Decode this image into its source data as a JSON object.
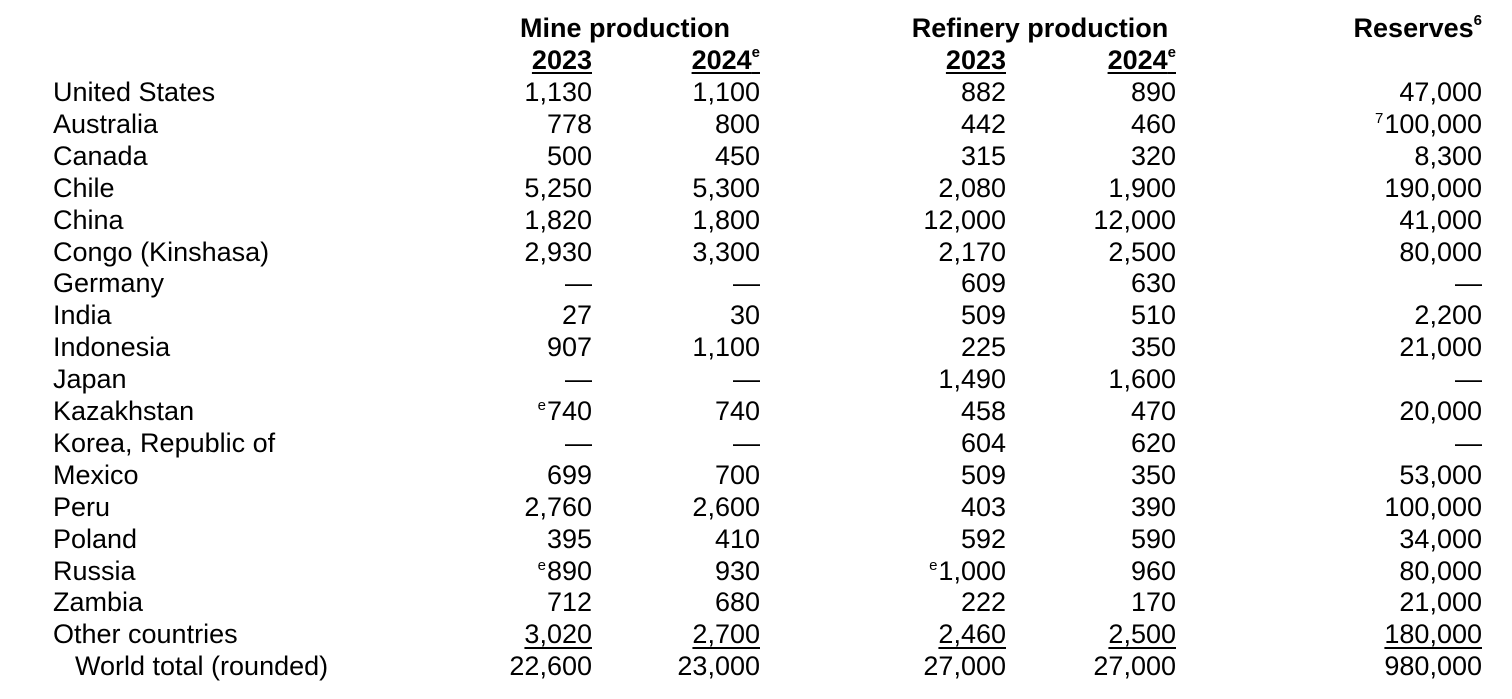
{
  "headers": {
    "mine_production": "Mine production",
    "refinery_production": "Refinery production",
    "reserves": "Reserves",
    "reserves_note": "6",
    "year_2023": "2023",
    "year_2024": "2024",
    "estimate_mark": "e"
  },
  "rows": [
    {
      "country": "United States",
      "mine_2023": "1,130",
      "mine_2024": "1,100",
      "ref_2023": "882",
      "ref_2024": "890",
      "reserves": "47,000"
    },
    {
      "country": "Australia",
      "mine_2023": "778",
      "mine_2024": "800",
      "ref_2023": "442",
      "ref_2024": "460",
      "reserves": "100,000",
      "reserves_note": "7"
    },
    {
      "country": "Canada",
      "mine_2023": "500",
      "mine_2024": "450",
      "ref_2023": "315",
      "ref_2024": "320",
      "reserves": "8,300"
    },
    {
      "country": "Chile",
      "mine_2023": "5,250",
      "mine_2024": "5,300",
      "ref_2023": "2,080",
      "ref_2024": "1,900",
      "reserves": "190,000"
    },
    {
      "country": "China",
      "mine_2023": "1,820",
      "mine_2024": "1,800",
      "ref_2023": "12,000",
      "ref_2024": "12,000",
      "reserves": "41,000"
    },
    {
      "country": "Congo (Kinshasa)",
      "mine_2023": "2,930",
      "mine_2024": "3,300",
      "ref_2023": "2,170",
      "ref_2024": "2,500",
      "reserves": "80,000"
    },
    {
      "country": "Germany",
      "mine_2023": "—",
      "mine_2024": "—",
      "ref_2023": "609",
      "ref_2024": "630",
      "reserves": "—"
    },
    {
      "country": "India",
      "mine_2023": "27",
      "mine_2024": "30",
      "ref_2023": "509",
      "ref_2024": "510",
      "reserves": "2,200"
    },
    {
      "country": "Indonesia",
      "mine_2023": "907",
      "mine_2024": "1,100",
      "ref_2023": "225",
      "ref_2024": "350",
      "reserves": "21,000"
    },
    {
      "country": "Japan",
      "mine_2023": "—",
      "mine_2024": "—",
      "ref_2023": "1,490",
      "ref_2024": "1,600",
      "reserves": "—"
    },
    {
      "country": "Kazakhstan",
      "mine_2023": "740",
      "mine_2023_note": "e",
      "mine_2024": "740",
      "ref_2023": "458",
      "ref_2024": "470",
      "reserves": "20,000"
    },
    {
      "country": "Korea, Republic of",
      "mine_2023": "—",
      "mine_2024": "—",
      "ref_2023": "604",
      "ref_2024": "620",
      "reserves": "—"
    },
    {
      "country": "Mexico",
      "mine_2023": "699",
      "mine_2024": "700",
      "ref_2023": "509",
      "ref_2024": "350",
      "reserves": "53,000"
    },
    {
      "country": "Peru",
      "mine_2023": "2,760",
      "mine_2024": "2,600",
      "ref_2023": "403",
      "ref_2024": "390",
      "reserves": "100,000"
    },
    {
      "country": "Poland",
      "mine_2023": "395",
      "mine_2024": "410",
      "ref_2023": "592",
      "ref_2024": "590",
      "reserves": "34,000"
    },
    {
      "country": "Russia",
      "mine_2023": "890",
      "mine_2023_note": "e",
      "mine_2024": "930",
      "ref_2023": "1,000",
      "ref_2023_note": "e",
      "ref_2024": "960",
      "reserves": "80,000"
    },
    {
      "country": "Zambia",
      "mine_2023": "712",
      "mine_2024": "680",
      "ref_2023": "222",
      "ref_2024": "170",
      "reserves": "21,000"
    },
    {
      "country": "Other countries",
      "mine_2023": "3,020",
      "mine_2024": "2,700",
      "ref_2023": "2,460",
      "ref_2024": "2,500",
      "reserves": "180,000"
    }
  ],
  "total": {
    "country": "World total (rounded)",
    "mine_2023": "22,600",
    "mine_2024": "23,000",
    "ref_2023": "27,000",
    "ref_2024": "27,000",
    "reserves": "980,000"
  }
}
